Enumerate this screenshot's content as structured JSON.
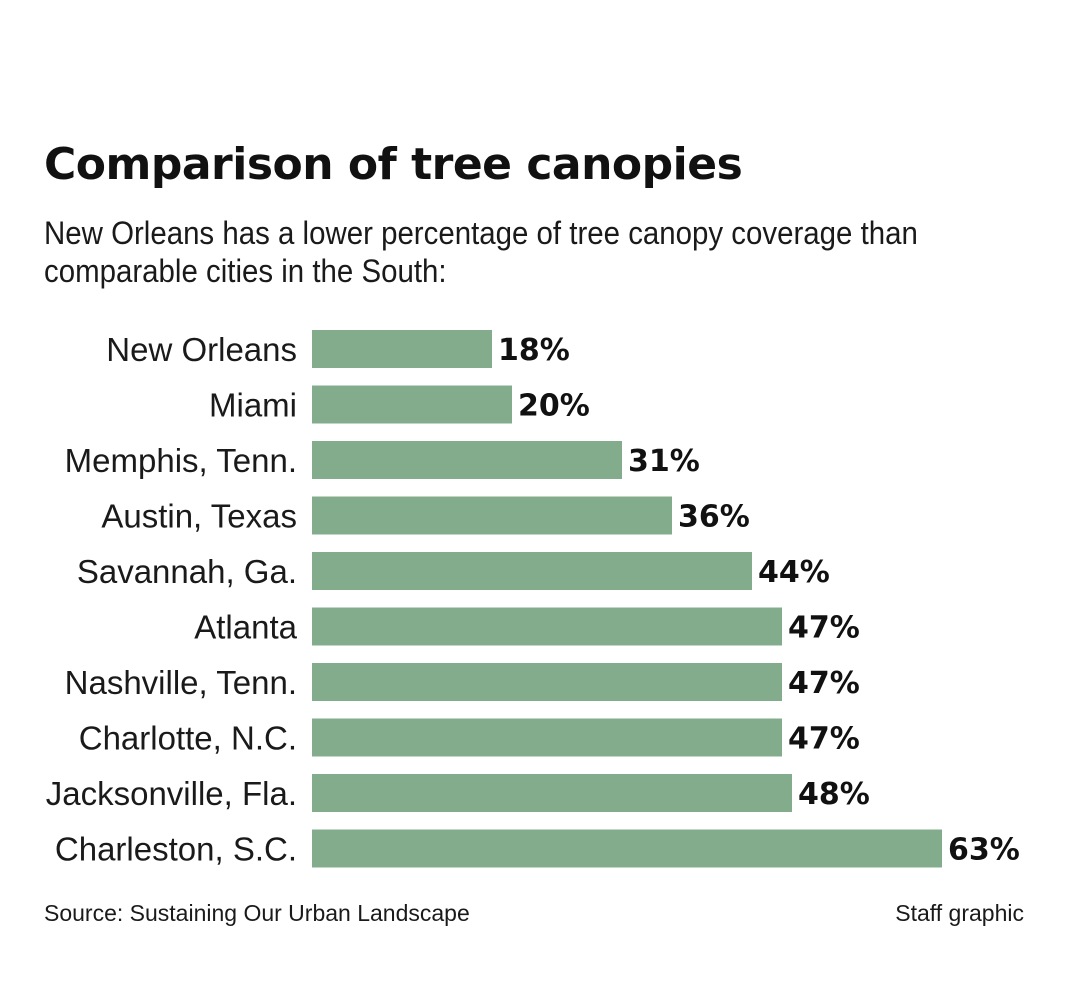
{
  "chart_data": {
    "type": "bar",
    "orientation": "horizontal",
    "title": "Comparison of tree canopies",
    "subtitle": "New Orleans has a lower percentage of tree canopy coverage than comparable cities in the South:",
    "categories": [
      "New Orleans",
      "Miami",
      "Memphis, Tenn.",
      "Austin, Texas",
      "Savannah, Ga.",
      "Atlanta",
      "Nashville, Tenn.",
      "Charlotte, N.C.",
      "Jacksonville, Fla.",
      "Charleston, S.C."
    ],
    "values": [
      18,
      20,
      31,
      36,
      44,
      47,
      47,
      47,
      48,
      63
    ],
    "value_suffix": "%",
    "bar_color": "#82ac8c",
    "xlabel": "",
    "ylabel": "",
    "grid": false,
    "legend": "none"
  },
  "footer": {
    "source": "Source: Sustaining Our Urban Landscape",
    "credit": "Staff graphic"
  }
}
